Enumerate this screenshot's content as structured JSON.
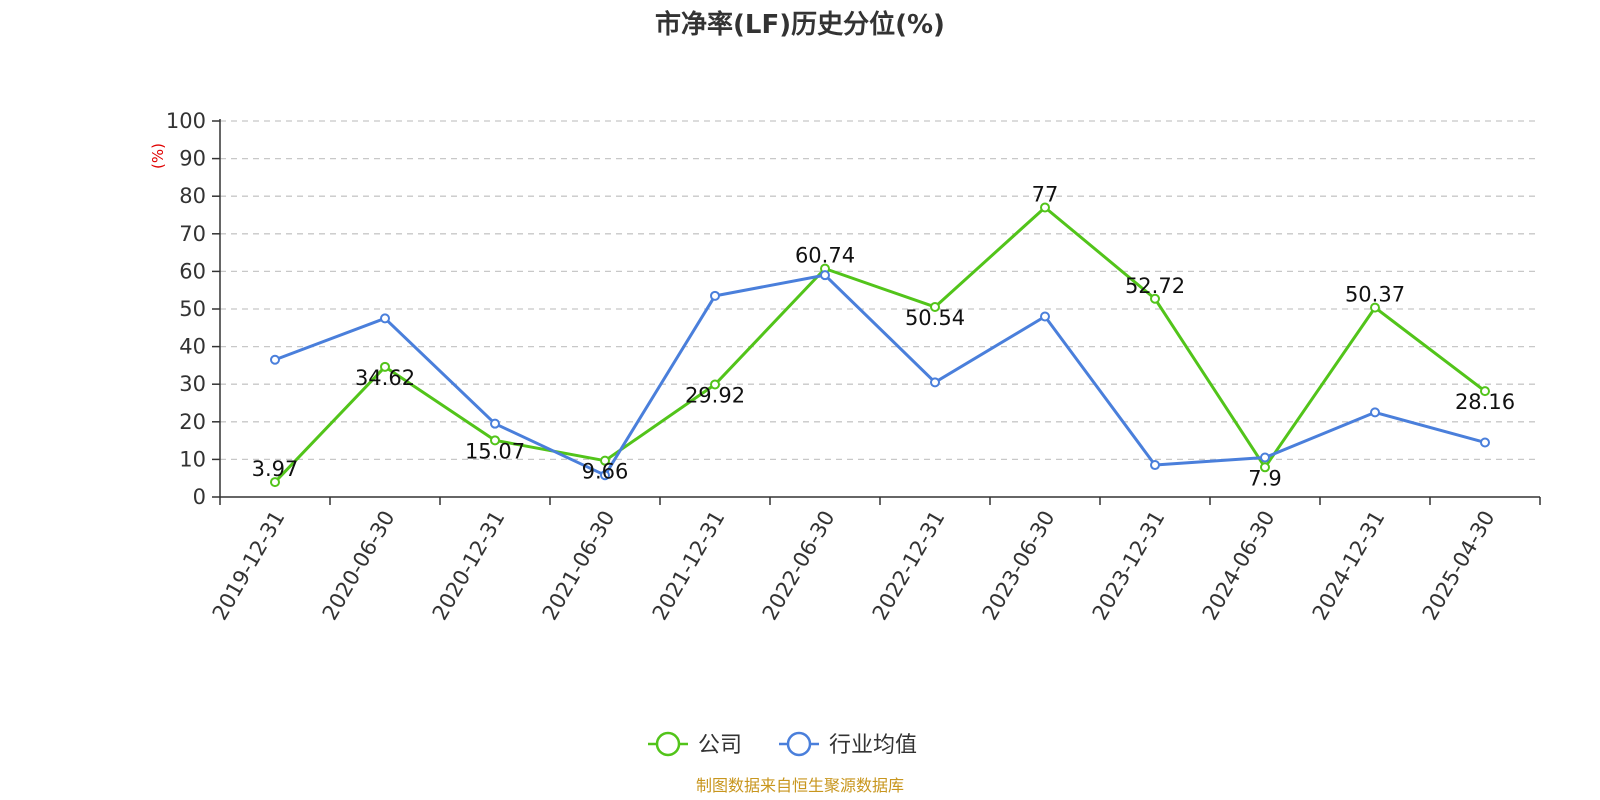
{
  "chart_data": {
    "type": "line",
    "title": "市净率(LF)历史分位(%)",
    "ylabel": "(%)",
    "ylim": [
      0,
      100
    ],
    "yticks": [
      0,
      10,
      20,
      30,
      40,
      50,
      60,
      70,
      80,
      90,
      100
    ],
    "grid": true,
    "legend_position": "bottom",
    "categories": [
      "2019-12-31",
      "2020-06-30",
      "2020-12-31",
      "2021-06-30",
      "2021-12-31",
      "2022-06-30",
      "2022-12-31",
      "2023-06-30",
      "2023-12-31",
      "2024-06-30",
      "2024-12-31",
      "2025-04-30"
    ],
    "series": [
      {
        "name": "公司",
        "color": "#52c41a",
        "values": [
          3.97,
          34.62,
          15.07,
          9.66,
          29.92,
          60.74,
          50.54,
          77,
          52.72,
          7.9,
          50.37,
          28.16
        ],
        "labels": [
          "3.97",
          "34.62",
          "15.07",
          "9.66",
          "29.92",
          "60.74",
          "50.54",
          "77",
          "52.72",
          "7.9",
          "50.37",
          "28.16"
        ]
      },
      {
        "name": "行业均值",
        "color": "#4a7fdb",
        "values": [
          36.5,
          47.5,
          19.5,
          5.8,
          53.5,
          59,
          30.5,
          48,
          8.5,
          10.5,
          22.5,
          14.5
        ]
      }
    ],
    "source": "制图数据来自恒生聚源数据库"
  }
}
